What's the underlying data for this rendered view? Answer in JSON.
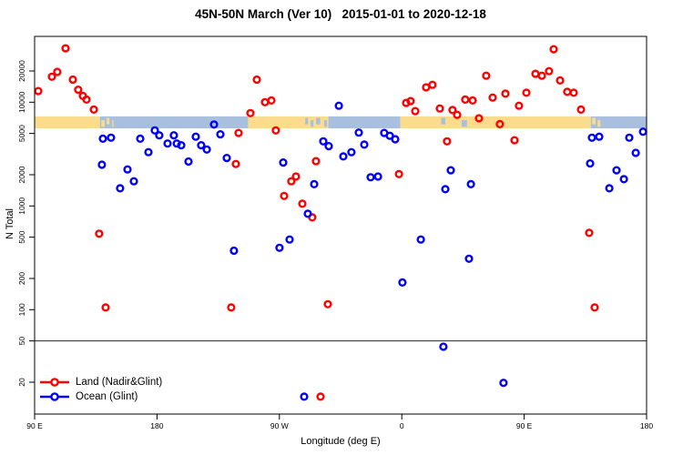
{
  "title": "45N-50N March (Ver 10)   2015-01-01 to 2020-12-18",
  "chart_data": {
    "type": "scatter",
    "title": "45N-50N March (Ver 10)   2015-01-01 to 2020-12-18",
    "x_axis": {
      "label": "Longitude (deg E)",
      "note": "longitude axis starts at 90E and wraps eastward 450 degrees",
      "range_deg_east": [
        90,
        540
      ],
      "ticks": [
        {
          "d": 90,
          "label": "90 E"
        },
        {
          "d": 180,
          "label": "180"
        },
        {
          "d": 270,
          "label": "90 W"
        },
        {
          "d": 360,
          "label": "0"
        },
        {
          "d": 450,
          "label": "90 E"
        },
        {
          "d": 540,
          "label": "180"
        }
      ]
    },
    "y_axis": {
      "label": "N Total",
      "scale": "log",
      "range": [
        10,
        43000
      ],
      "ticks": [
        20000,
        10000,
        5000,
        2000,
        1000,
        500,
        200,
        100,
        50,
        20
      ]
    },
    "threshold_line_y": 50,
    "legend": [
      {
        "label": "Land (Nadir&Glint)",
        "color": "#ff0000"
      },
      {
        "label": "Ocean (Glint)",
        "color": "#0000ff"
      }
    ],
    "land_ocean_band": {
      "y_range": [
        5600,
        7300
      ],
      "land_color": "#fadc8c",
      "ocean_color": "#a9bfde",
      "segments": [
        {
          "d0": 90,
          "d1": 138,
          "type": "land"
        },
        {
          "d0": 138,
          "d1": 247,
          "type": "ocean"
        },
        {
          "d0": 247,
          "d1": 306,
          "type": "land"
        },
        {
          "d0": 306,
          "d1": 359,
          "type": "ocean"
        },
        {
          "d0": 359,
          "d1": 499,
          "type": "land"
        },
        {
          "d0": 499,
          "d1": 540,
          "type": "ocean"
        }
      ],
      "speckles": [
        {
          "d0": 139,
          "d1": 141.5,
          "type": "land"
        },
        {
          "d0": 143,
          "d1": 145,
          "type": "land"
        },
        {
          "d0": 147,
          "d1": 148,
          "type": "land"
        },
        {
          "d0": 289,
          "d1": 291,
          "type": "ocean"
        },
        {
          "d0": 293,
          "d1": 295,
          "type": "ocean"
        },
        {
          "d0": 297,
          "d1": 300,
          "type": "ocean"
        },
        {
          "d0": 303,
          "d1": 305,
          "type": "ocean"
        },
        {
          "d0": 389,
          "d1": 392,
          "type": "ocean"
        },
        {
          "d0": 404,
          "d1": 408,
          "type": "ocean"
        },
        {
          "d0": 500,
          "d1": 502.5,
          "type": "land"
        },
        {
          "d0": 504,
          "d1": 506,
          "type": "land"
        }
      ]
    },
    "series": [
      {
        "name": "Land (Nadir&Glint)",
        "color": "#ff0000",
        "points": [
          [
            92.7,
            12800
          ],
          [
            102.7,
            17600
          ],
          [
            106.7,
            19600
          ],
          [
            112.8,
            33100
          ],
          [
            118.1,
            16500
          ],
          [
            122.1,
            13200
          ],
          [
            125.5,
            11500
          ],
          [
            128.2,
            10600
          ],
          [
            133.5,
            8500
          ],
          [
            137.5,
            540
          ],
          [
            142.2,
            105
          ],
          [
            234.6,
            105
          ],
          [
            238,
            2540
          ],
          [
            240,
            5050
          ],
          [
            248.7,
            7850
          ],
          [
            253.4,
            16500
          ],
          [
            259.4,
            10000
          ],
          [
            264.1,
            10400
          ],
          [
            267.4,
            5350
          ],
          [
            273.5,
            1250
          ],
          [
            278.8,
            1730
          ],
          [
            282.2,
            1920
          ],
          [
            286.9,
            1050
          ],
          [
            294.2,
            775
          ],
          [
            296.9,
            2700
          ],
          [
            300.3,
            14.5
          ],
          [
            305.6,
            113
          ],
          [
            357.9,
            2030
          ],
          [
            363.2,
            9850
          ],
          [
            366.5,
            10250
          ],
          [
            369.9,
            8200
          ],
          [
            377.9,
            13900
          ],
          [
            382.6,
            14700
          ],
          [
            388,
            8700
          ],
          [
            393.3,
            4200
          ],
          [
            397.3,
            8400
          ],
          [
            400.7,
            7550
          ],
          [
            406.7,
            10600
          ],
          [
            412.1,
            10400
          ],
          [
            416.8,
            7000
          ],
          [
            422.1,
            18000
          ],
          [
            426.8,
            11100
          ],
          [
            432.1,
            6150
          ],
          [
            436.2,
            12100
          ],
          [
            442.9,
            4300
          ],
          [
            446.2,
            9250
          ],
          [
            451.6,
            12350
          ],
          [
            458.3,
            18800
          ],
          [
            463,
            18000
          ],
          [
            468.3,
            19900
          ],
          [
            471.7,
            32400
          ],
          [
            476.4,
            16200
          ],
          [
            481.7,
            12600
          ],
          [
            486.4,
            12350
          ],
          [
            491.8,
            8500
          ],
          [
            497.8,
            550
          ],
          [
            501.8,
            105
          ]
        ]
      },
      {
        "name": "Ocean (Glint)",
        "color": "#0000ff",
        "points": [
          [
            139.5,
            2500
          ],
          [
            140.2,
            4450
          ],
          [
            146.2,
            4550
          ],
          [
            152.9,
            1480
          ],
          [
            158.3,
            2250
          ],
          [
            163,
            1730
          ],
          [
            167.7,
            4450
          ],
          [
            173.7,
            3300
          ],
          [
            178.4,
            5350
          ],
          [
            181.7,
            4800
          ],
          [
            187.8,
            4000
          ],
          [
            192.4,
            4800
          ],
          [
            194.5,
            4000
          ],
          [
            197.8,
            3850
          ],
          [
            203.2,
            2680
          ],
          [
            208.5,
            4650
          ],
          [
            212.5,
            3850
          ],
          [
            216.6,
            3500
          ],
          [
            221.9,
            6100
          ],
          [
            226.6,
            4900
          ],
          [
            231.3,
            2900
          ],
          [
            236.6,
            370
          ],
          [
            270.1,
            395
          ],
          [
            272.8,
            2620
          ],
          [
            277.5,
            475
          ],
          [
            288.2,
            14.5
          ],
          [
            290.9,
            840
          ],
          [
            295.6,
            1620
          ],
          [
            302.3,
            4200
          ],
          [
            306.3,
            3770
          ],
          [
            313.7,
            9250
          ],
          [
            317,
            3000
          ],
          [
            323,
            3300
          ],
          [
            328.4,
            5100
          ],
          [
            332.4,
            3900
          ],
          [
            337.1,
            1890
          ],
          [
            342.5,
            1920
          ],
          [
            347.1,
            5050
          ],
          [
            351.2,
            4750
          ],
          [
            355.2,
            4400
          ],
          [
            360.5,
            183
          ],
          [
            374,
            475
          ],
          [
            390.6,
            44
          ],
          [
            392,
            1450
          ],
          [
            396,
            2210
          ],
          [
            409.4,
            310
          ],
          [
            410.8,
            1620
          ],
          [
            434.8,
            19.7
          ],
          [
            498.5,
            2570
          ],
          [
            499.8,
            4550
          ],
          [
            505.2,
            4650
          ],
          [
            512.6,
            1480
          ],
          [
            517.9,
            2210
          ],
          [
            523.3,
            1810
          ],
          [
            527.3,
            4550
          ],
          [
            532,
            3250
          ],
          [
            537.4,
            5200
          ]
        ]
      }
    ]
  }
}
